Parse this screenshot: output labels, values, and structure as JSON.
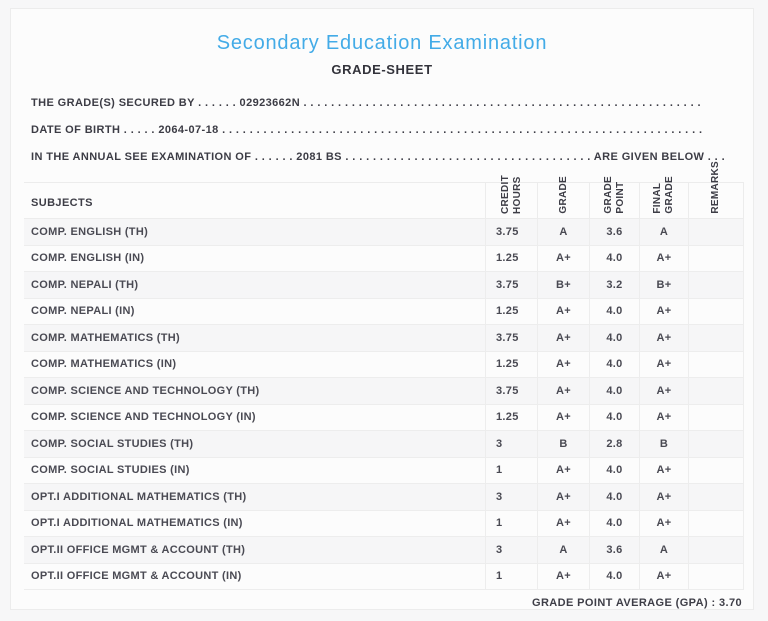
{
  "page": {
    "title": "Secondary Education Examination",
    "subtitle": "GRADE-SHEET",
    "accent_color": "#43abe7",
    "info_lines": {
      "secured_by": "THE GRADE(S) SECURED BY . . . . . . 02923662N . . . . . . . . . . . . . . . . . . . . . . . . . . . . . . . . . . . . . . . . . . . . . . . . . . . . . . . . . .",
      "date_of_birth": "DATE OF BIRTH . . . . . 2064-07-18 . . . . . . . . . . . . . . . . . . . . . . . . . . . . . . . . . . . . . . . . . . . . . . . . . . . . . . . . . . . . . . . . . . . . . .",
      "examination_of": "IN THE ANNUAL SEE EXAMINATION OF . . . . . . 2081 BS . . . . . . . . . . . . . . . . . . . . . . . . . . . . . . . . . . . . ARE GIVEN BELOW . . ."
    },
    "values": {
      "candidate_id": "02923662N",
      "date_of_birth": "2064-07-18",
      "exam_year": "2081 BS"
    },
    "gpa_line": "GRADE POINT AVERAGE (GPA) : 3.70"
  },
  "table": {
    "subjects_header": "SUBJECTS",
    "columns": {
      "credit_hours": "CREDIT\nHOURS",
      "grade": "GRADE",
      "grade_point": "GRADE\nPOINT",
      "final_grade": "FINAL\nGRADE",
      "remarks": "REMARKS"
    },
    "rows": [
      {
        "subject": "COMP. ENGLISH (TH)",
        "credit_hours": "3.75",
        "grade": "A",
        "grade_point": "3.6",
        "final_grade": "A",
        "remarks": ""
      },
      {
        "subject": "COMP. ENGLISH (IN)",
        "credit_hours": "1.25",
        "grade": "A+",
        "grade_point": "4.0",
        "final_grade": "A+",
        "remarks": ""
      },
      {
        "subject": "COMP. NEPALI (TH)",
        "credit_hours": "3.75",
        "grade": "B+",
        "grade_point": "3.2",
        "final_grade": "B+",
        "remarks": ""
      },
      {
        "subject": "COMP. NEPALI (IN)",
        "credit_hours": "1.25",
        "grade": "A+",
        "grade_point": "4.0",
        "final_grade": "A+",
        "remarks": ""
      },
      {
        "subject": "COMP. MATHEMATICS (TH)",
        "credit_hours": "3.75",
        "grade": "A+",
        "grade_point": "4.0",
        "final_grade": "A+",
        "remarks": ""
      },
      {
        "subject": "COMP. MATHEMATICS (IN)",
        "credit_hours": "1.25",
        "grade": "A+",
        "grade_point": "4.0",
        "final_grade": "A+",
        "remarks": ""
      },
      {
        "subject": "COMP. SCIENCE AND TECHNOLOGY (TH)",
        "credit_hours": "3.75",
        "grade": "A+",
        "grade_point": "4.0",
        "final_grade": "A+",
        "remarks": ""
      },
      {
        "subject": "COMP. SCIENCE AND TECHNOLOGY (IN)",
        "credit_hours": "1.25",
        "grade": "A+",
        "grade_point": "4.0",
        "final_grade": "A+",
        "remarks": ""
      },
      {
        "subject": "COMP. SOCIAL STUDIES (TH)",
        "credit_hours": "3",
        "grade": "B",
        "grade_point": "2.8",
        "final_grade": "B",
        "remarks": ""
      },
      {
        "subject": "COMP. SOCIAL STUDIES (IN)",
        "credit_hours": "1",
        "grade": "A+",
        "grade_point": "4.0",
        "final_grade": "A+",
        "remarks": ""
      },
      {
        "subject": "OPT.I ADDITIONAL MATHEMATICS (TH)",
        "credit_hours": "3",
        "grade": "A+",
        "grade_point": "4.0",
        "final_grade": "A+",
        "remarks": ""
      },
      {
        "subject": "OPT.I ADDITIONAL MATHEMATICS (IN)",
        "credit_hours": "1",
        "grade": "A+",
        "grade_point": "4.0",
        "final_grade": "A+",
        "remarks": ""
      },
      {
        "subject": "OPT.II OFFICE MGMT & ACCOUNT (TH)",
        "credit_hours": "3",
        "grade": "A",
        "grade_point": "3.6",
        "final_grade": "A",
        "remarks": ""
      },
      {
        "subject": "OPT.II OFFICE MGMT & ACCOUNT (IN)",
        "credit_hours": "1",
        "grade": "A+",
        "grade_point": "4.0",
        "final_grade": "A+",
        "remarks": ""
      }
    ],
    "gpa_value": "3.70"
  }
}
